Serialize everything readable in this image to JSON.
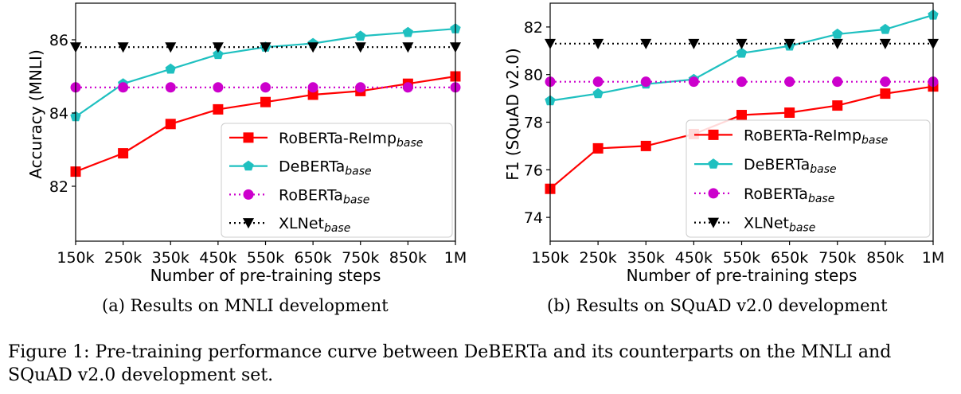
{
  "chart_data": [
    {
      "type": "line",
      "ylabel": "Accuracy (MNLI)",
      "xlabel": "Number of pre-training steps",
      "categories": [
        "150k",
        "250k",
        "350k",
        "450k",
        "550k",
        "650k",
        "750k",
        "850k",
        "1M"
      ],
      "ylim": [
        80.5,
        87.0
      ],
      "yticks": [
        82,
        84,
        86
      ],
      "legend_position": "lower-right",
      "grid": false,
      "series": [
        {
          "name": "RoBERTa-ReImp",
          "sub": "base",
          "color": "#ff0000",
          "style": "solid",
          "marker": "square",
          "values": [
            82.4,
            82.9,
            83.7,
            84.1,
            84.3,
            84.5,
            84.6,
            84.8,
            85.0
          ]
        },
        {
          "name": "DeBERTa",
          "sub": "base",
          "color": "#1fc0c0",
          "style": "solid",
          "marker": "pentagon",
          "values": [
            83.9,
            84.8,
            85.2,
            85.6,
            85.8,
            85.9,
            86.1,
            86.2,
            86.3
          ]
        },
        {
          "name": "RoBERTa",
          "sub": "base",
          "color": "#cc00cc",
          "style": "dotted",
          "marker": "circle",
          "values": [
            84.7,
            84.7,
            84.7,
            84.7,
            84.7,
            84.7,
            84.7,
            84.7,
            84.7
          ]
        },
        {
          "name": "XLNet",
          "sub": "base",
          "color": "#000000",
          "style": "dotted",
          "marker": "triangle-down",
          "values": [
            85.8,
            85.8,
            85.8,
            85.8,
            85.8,
            85.8,
            85.8,
            85.8,
            85.8
          ]
        }
      ],
      "caption": "(a) Results on MNLI development"
    },
    {
      "type": "line",
      "ylabel": "F1 (SQuAD v2.0)",
      "xlabel": "Number of pre-training steps",
      "categories": [
        "150k",
        "250k",
        "350k",
        "450k",
        "550k",
        "650k",
        "750k",
        "850k",
        "1M"
      ],
      "ylim": [
        73.0,
        83.0
      ],
      "yticks": [
        74,
        76,
        78,
        80,
        82
      ],
      "legend_position": "lower-right",
      "grid": false,
      "series": [
        {
          "name": "RoBERTa-ReImp",
          "sub": "base",
          "color": "#ff0000",
          "style": "solid",
          "marker": "square",
          "values": [
            75.2,
            76.9,
            77.0,
            77.5,
            78.3,
            78.4,
            78.7,
            79.2,
            79.5
          ]
        },
        {
          "name": "DeBERTa",
          "sub": "base",
          "color": "#1fc0c0",
          "style": "solid",
          "marker": "pentagon",
          "values": [
            78.9,
            79.2,
            79.6,
            79.8,
            80.9,
            81.2,
            81.7,
            81.9,
            82.5
          ]
        },
        {
          "name": "RoBERTa",
          "sub": "base",
          "color": "#cc00cc",
          "style": "dotted",
          "marker": "circle",
          "values": [
            79.7,
            79.7,
            79.7,
            79.7,
            79.7,
            79.7,
            79.7,
            79.7,
            79.7
          ]
        },
        {
          "name": "XLNet",
          "sub": "base",
          "color": "#000000",
          "style": "dotted",
          "marker": "triangle-down",
          "values": [
            81.3,
            81.3,
            81.3,
            81.3,
            81.3,
            81.3,
            81.3,
            81.3,
            81.3
          ]
        }
      ],
      "caption": "(b) Results on SQuAD v2.0 development"
    }
  ],
  "figure_caption": "Figure 1: Pre-training performance curve between DeBERTa and its counterparts on the MNLI and SQuAD v2.0 development set."
}
